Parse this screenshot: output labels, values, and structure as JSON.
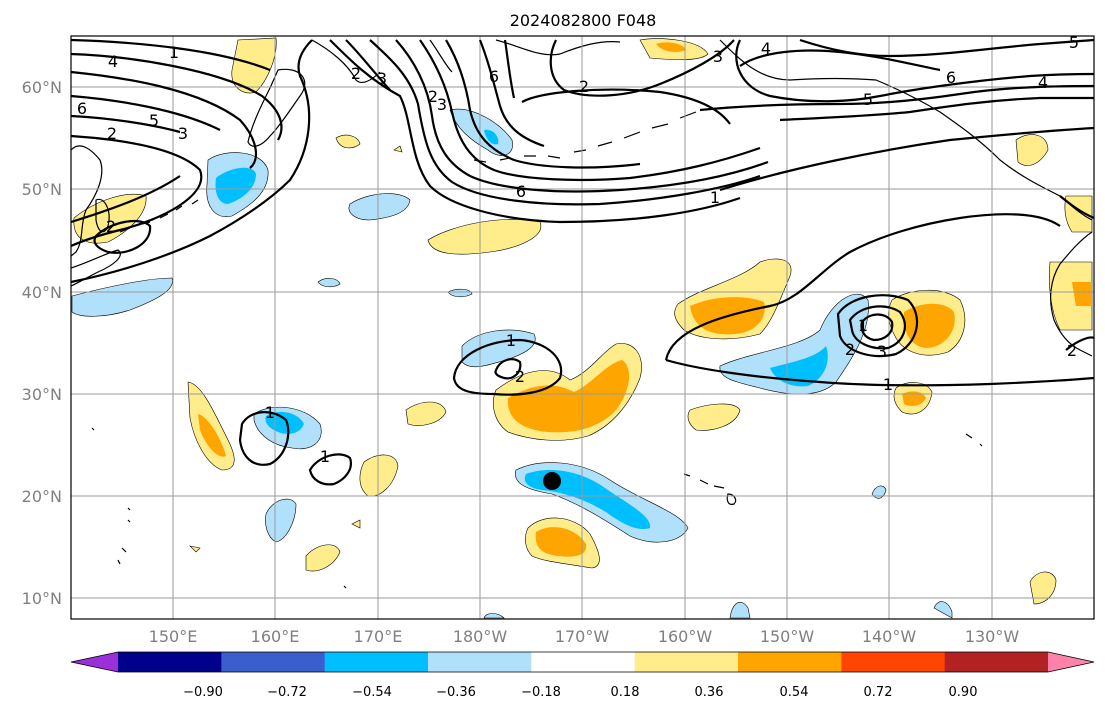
{
  "title": "2024082800 F048",
  "lat_labels": [
    "60°N",
    "50°N",
    "40°N",
    "30°N",
    "20°N",
    "10°N"
  ],
  "lon_labels": [
    "150°E",
    "160°E",
    "170°E",
    "180°W",
    "170°W",
    "160°W",
    "150°W",
    "140°W",
    "130°W"
  ],
  "colorbar": {
    "ticks": [
      "−0.90",
      "−0.72",
      "−0.54",
      "−0.36",
      "−0.18",
      "0.18",
      "0.36",
      "0.54",
      "0.72",
      "0.90"
    ],
    "colors": [
      "#9b30d9",
      "#00008b",
      "#3a5fcd",
      "#00bfff",
      "#b0e0fa",
      "#ffffff",
      "#ffec8b",
      "#ffa500",
      "#ff4500",
      "#b22222",
      "#ff82ab"
    ]
  },
  "contour_labels": [
    "1",
    "4",
    "6",
    "5",
    "3",
    "2",
    "2",
    "3",
    "2",
    "6",
    "3",
    "4",
    "5",
    "2",
    "3",
    "2",
    "6",
    "1",
    "4",
    "5",
    "6",
    "4",
    "5",
    "2",
    "1",
    "1",
    "2",
    "1",
    "4",
    "2",
    "3",
    "1",
    "1",
    "1",
    "2"
  ],
  "map_extent": {
    "lon_min": "140°E",
    "lon_max": "120°W",
    "lat_min": "8°N",
    "lat_max": "65°N"
  }
}
